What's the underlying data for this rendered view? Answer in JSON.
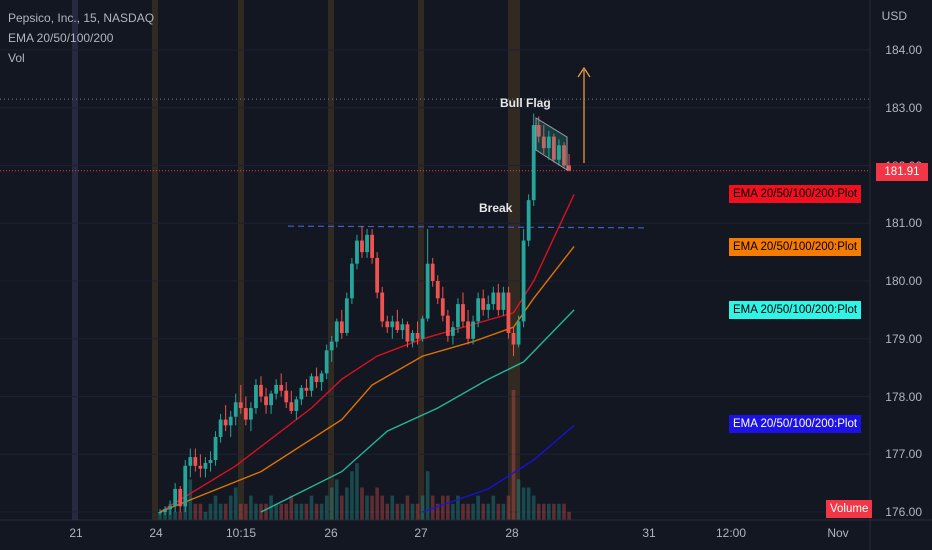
{
  "header": {
    "title": "Pepsico, Inc., 15, NASDAQ",
    "indicator": "EMA 20/50/100/200",
    "volume": "Vol"
  },
  "axis": {
    "currency": "USD",
    "y_ticks": [
      "184.00",
      "183.00",
      "182.00",
      "181.00",
      "180.00",
      "179.00",
      "178.00",
      "177.00",
      "176.00"
    ],
    "x_ticks": [
      "21",
      "24",
      "10:15",
      "26",
      "27",
      "28",
      "31",
      "12:00",
      "Nov"
    ]
  },
  "price_tag": "181.91",
  "ema_tags": [
    {
      "label": "EMA 20/50/100/200:Plot",
      "color": "#f20f1f",
      "text_color": "#000000"
    },
    {
      "label": "EMA 20/50/100/200:Plot",
      "color": "#f57c00",
      "text_color": "#000000"
    },
    {
      "label": "EMA 20/50/100/200:Plot",
      "color": "#2ef5e6",
      "text_color": "#000000"
    },
    {
      "label": "EMA 20/50/100/200:Plot",
      "color": "#1c11e6",
      "text_color": "#ffffff"
    }
  ],
  "volume_tag": "Volume",
  "annotations": {
    "bull_flag": "Bull Flag",
    "break": "Break"
  },
  "chart_data": {
    "type": "candlestick",
    "title": "Pepsico, Inc., 15, NASDAQ",
    "ylim": [
      176.0,
      184.3
    ],
    "last_price": 181.91,
    "breakout_level": 180.95,
    "colors": {
      "up": "#26a69a",
      "down": "#ef5350",
      "ema20": "#f20f1f",
      "ema50": "#f57c00",
      "ema100": "#26c6a6",
      "ema200": "#1c11e6"
    },
    "candles": [
      [
        176.0,
        176.05,
        175.95,
        176.0
      ],
      [
        176.0,
        176.1,
        175.95,
        176.05
      ],
      [
        176.05,
        176.2,
        175.95,
        176.1
      ],
      [
        176.1,
        176.5,
        176.0,
        176.4
      ],
      [
        176.4,
        176.45,
        176.0,
        176.1
      ],
      [
        176.1,
        176.9,
        176.0,
        176.8
      ],
      [
        176.8,
        177.1,
        176.6,
        176.95
      ],
      [
        176.95,
        177.1,
        176.7,
        176.8
      ],
      [
        176.8,
        177.0,
        176.6,
        176.75
      ],
      [
        176.75,
        176.95,
        176.6,
        176.85
      ],
      [
        176.85,
        177.05,
        176.7,
        176.9
      ],
      [
        176.9,
        177.4,
        176.8,
        177.3
      ],
      [
        177.3,
        177.7,
        177.2,
        177.6
      ],
      [
        177.6,
        177.85,
        177.4,
        177.5
      ],
      [
        177.5,
        177.75,
        177.3,
        177.65
      ],
      [
        177.65,
        178.05,
        177.5,
        177.9
      ],
      [
        177.9,
        178.2,
        177.7,
        177.8
      ],
      [
        177.8,
        178.0,
        177.5,
        177.6
      ],
      [
        177.6,
        177.9,
        177.4,
        177.8
      ],
      [
        177.8,
        178.3,
        177.7,
        178.2
      ],
      [
        178.2,
        178.35,
        177.9,
        178.0
      ],
      [
        178.0,
        178.15,
        177.7,
        177.85
      ],
      [
        177.85,
        178.1,
        177.7,
        178.05
      ],
      [
        178.05,
        178.3,
        177.95,
        178.2
      ],
      [
        178.2,
        178.4,
        178.0,
        178.1
      ],
      [
        178.1,
        178.25,
        177.8,
        177.9
      ],
      [
        177.9,
        178.1,
        177.7,
        177.75
      ],
      [
        177.75,
        178.0,
        177.6,
        177.95
      ],
      [
        177.95,
        178.2,
        177.85,
        178.15
      ],
      [
        178.15,
        178.3,
        178.0,
        178.1
      ],
      [
        178.1,
        178.4,
        178.0,
        178.35
      ],
      [
        178.35,
        178.5,
        178.15,
        178.25
      ],
      [
        178.25,
        178.45,
        178.1,
        178.4
      ],
      [
        178.4,
        178.9,
        178.3,
        178.8
      ],
      [
        178.8,
        179.05,
        178.6,
        178.95
      ],
      [
        178.95,
        179.35,
        178.85,
        179.3
      ],
      [
        179.3,
        179.5,
        179.0,
        179.1
      ],
      [
        179.1,
        179.8,
        179.05,
        179.7
      ],
      [
        179.7,
        180.4,
        179.6,
        180.3
      ],
      [
        180.3,
        180.8,
        180.2,
        180.7
      ],
      [
        180.7,
        180.95,
        180.4,
        180.5
      ],
      [
        180.5,
        180.9,
        180.4,
        180.8
      ],
      [
        180.8,
        180.9,
        180.3,
        180.4
      ],
      [
        180.4,
        180.5,
        179.7,
        179.8
      ],
      [
        179.8,
        179.9,
        179.2,
        179.3
      ],
      [
        179.3,
        179.4,
        179.1,
        179.2
      ],
      [
        179.2,
        179.4,
        179.0,
        179.3
      ],
      [
        179.3,
        179.5,
        179.1,
        179.15
      ],
      [
        179.15,
        179.35,
        179.0,
        179.25
      ],
      [
        179.25,
        179.3,
        178.85,
        178.95
      ],
      [
        178.95,
        179.15,
        178.85,
        179.1
      ],
      [
        179.1,
        179.3,
        178.9,
        179.0
      ],
      [
        179.0,
        179.4,
        178.95,
        179.35
      ],
      [
        179.35,
        180.9,
        179.3,
        180.3
      ],
      [
        180.3,
        180.4,
        179.9,
        180.0
      ],
      [
        180.0,
        180.1,
        179.6,
        179.7
      ],
      [
        179.7,
        179.9,
        179.3,
        179.4
      ],
      [
        179.4,
        179.5,
        178.95,
        179.05
      ],
      [
        179.05,
        179.3,
        178.9,
        179.2
      ],
      [
        179.2,
        179.7,
        179.1,
        179.6
      ],
      [
        179.6,
        179.8,
        179.2,
        179.3
      ],
      [
        179.3,
        179.5,
        178.9,
        179.0
      ],
      [
        179.0,
        179.4,
        178.9,
        179.3
      ],
      [
        179.3,
        179.8,
        179.2,
        179.7
      ],
      [
        179.7,
        179.85,
        179.4,
        179.5
      ],
      [
        179.5,
        179.75,
        179.35,
        179.6
      ],
      [
        179.6,
        179.9,
        179.5,
        179.8
      ],
      [
        179.8,
        179.95,
        179.4,
        179.5
      ],
      [
        179.5,
        179.9,
        179.4,
        179.8
      ],
      [
        179.8,
        179.9,
        179.0,
        179.1
      ],
      [
        179.1,
        179.2,
        178.7,
        178.9
      ],
      [
        178.9,
        179.4,
        178.85,
        179.3
      ],
      [
        179.3,
        180.9,
        179.2,
        180.7
      ],
      [
        180.7,
        181.5,
        180.6,
        181.4
      ],
      [
        181.4,
        182.9,
        181.3,
        182.7
      ],
      [
        182.7,
        182.85,
        182.4,
        182.5
      ],
      [
        182.5,
        182.7,
        182.2,
        182.3
      ],
      [
        182.3,
        182.6,
        182.1,
        182.5
      ],
      [
        182.5,
        182.55,
        182.05,
        182.1
      ],
      [
        182.1,
        182.45,
        182.0,
        182.35
      ],
      [
        182.35,
        182.4,
        181.95,
        182.0
      ],
      [
        182.0,
        182.2,
        181.9,
        181.91
      ]
    ],
    "ema_series": [
      {
        "values": [
          [
            0,
            176.0
          ],
          [
            15,
            176.8
          ],
          [
            30,
            177.8
          ],
          [
            36,
            178.3
          ],
          [
            43,
            178.7
          ],
          [
            52,
            179.0
          ],
          [
            62,
            179.25
          ],
          [
            70,
            179.45
          ],
          [
            74,
            180.0
          ],
          [
            82,
            181.5
          ]
        ]
      },
      {
        "values": [
          [
            0,
            176.0
          ],
          [
            20,
            176.7
          ],
          [
            36,
            177.6
          ],
          [
            42,
            178.2
          ],
          [
            52,
            178.7
          ],
          [
            62,
            178.95
          ],
          [
            70,
            179.2
          ],
          [
            74,
            179.7
          ],
          [
            82,
            180.6
          ]
        ]
      },
      {
        "values": [
          [
            20,
            176.0
          ],
          [
            36,
            176.7
          ],
          [
            45,
            177.4
          ],
          [
            55,
            177.8
          ],
          [
            65,
            178.3
          ],
          [
            72,
            178.6
          ],
          [
            82,
            179.5
          ]
        ]
      },
      {
        "values": [
          [
            52,
            176.0
          ],
          [
            65,
            176.4
          ],
          [
            74,
            176.9
          ],
          [
            82,
            177.5
          ]
        ]
      }
    ],
    "volume": [
      1,
      1,
      2,
      1,
      1,
      3,
      5,
      2,
      2,
      1,
      2,
      3,
      2,
      2,
      3,
      4,
      2,
      2,
      3,
      2,
      2,
      2,
      3,
      2,
      2,
      2,
      3,
      2,
      2,
      2,
      3,
      2,
      2,
      3,
      4,
      5,
      3,
      4,
      6,
      7,
      4,
      3,
      3,
      4,
      3,
      2,
      3,
      2,
      2,
      3,
      2,
      2,
      3,
      6,
      3,
      2,
      3,
      3,
      2,
      3,
      2,
      2,
      2,
      3,
      2,
      2,
      3,
      2,
      2,
      3,
      16,
      5,
      4,
      4,
      3,
      2,
      2,
      2,
      2,
      2,
      2,
      1
    ]
  }
}
